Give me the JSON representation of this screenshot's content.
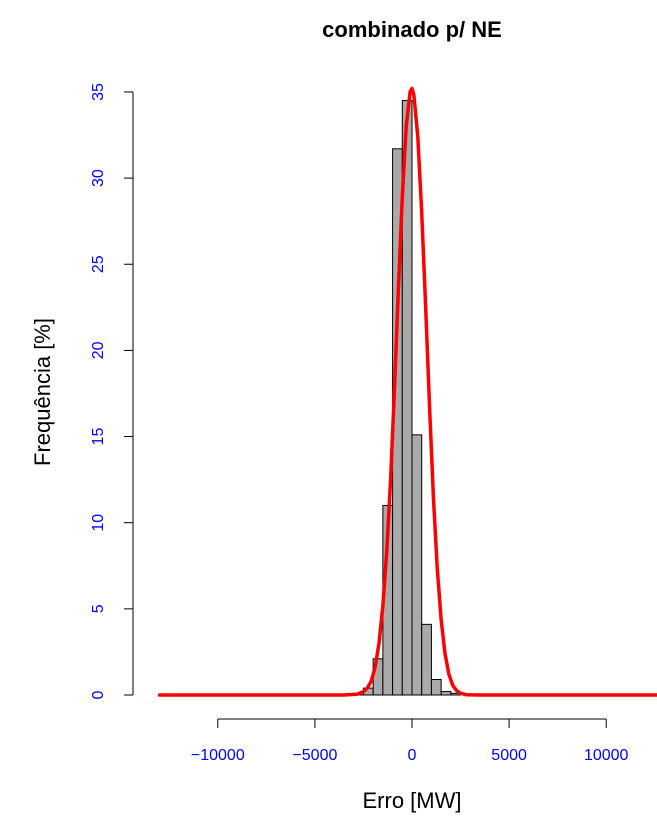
{
  "chart_data": {
    "type": "bar",
    "title": "combinado p/ NE",
    "xlabel": "Erro [MW]",
    "ylabel": "Frequência [%]",
    "xlim": [
      -12500,
      12500
    ],
    "ylim": [
      0,
      35
    ],
    "x_ticks": [
      -10000,
      -5000,
      0,
      5000,
      10000
    ],
    "x_tick_labels": [
      "−10000",
      "−5000",
      "0",
      "5000",
      "10000"
    ],
    "y_ticks": [
      0,
      5,
      10,
      15,
      20,
      25,
      30,
      35
    ],
    "y_tick_labels": [
      "0",
      "5",
      "10",
      "15",
      "20",
      "25",
      "30",
      "35"
    ],
    "bin_width": 500,
    "histogram": {
      "bin_edges": [
        -3000,
        -2500,
        -2000,
        -1500,
        -1000,
        -500,
        0,
        500,
        1000,
        1500,
        2000,
        2500,
        3000
      ],
      "values": [
        0.1,
        0.4,
        2.1,
        11.0,
        31.7,
        34.5,
        15.1,
        4.1,
        0.9,
        0.2,
        0.1,
        0.0
      ]
    },
    "density_curve": {
      "x": [
        -13000,
        -3500,
        -2800,
        -2500,
        -2300,
        -2100,
        -1900,
        -1700,
        -1500,
        -1300,
        -1100,
        -900,
        -700,
        -500,
        -300,
        -100,
        0,
        100,
        300,
        500,
        700,
        900,
        1100,
        1300,
        1500,
        1700,
        1900,
        2100,
        2300,
        2500,
        2800,
        3500,
        13000
      ],
      "y": [
        0,
        0,
        0.05,
        0.2,
        0.4,
        0.8,
        1.6,
        3.0,
        5.2,
        8.4,
        12.5,
        17.8,
        23.6,
        28.9,
        33.0,
        35.0,
        35.2,
        34.8,
        32.4,
        28.0,
        22.6,
        16.8,
        11.5,
        7.4,
        4.4,
        2.4,
        1.2,
        0.55,
        0.25,
        0.1,
        0.02,
        0,
        0
      ]
    },
    "colors": {
      "bars": "#aaaaaa",
      "bar_border": "#000000",
      "curve": "#ff0000",
      "tick_labels": "#0000ff"
    },
    "grid": false
  }
}
